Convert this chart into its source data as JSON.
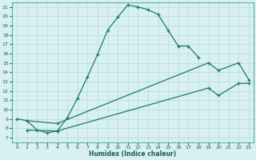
{
  "xlabel": "Humidex (Indice chaleur)",
  "bg_color": "#d8f0f0",
  "grid_color": "#b8d8d8",
  "line_color": "#1a7a6e",
  "xlim": [
    -0.5,
    23.5
  ],
  "ylim": [
    6.5,
    21.5
  ],
  "xticks": [
    0,
    1,
    2,
    3,
    4,
    5,
    6,
    7,
    8,
    9,
    10,
    11,
    12,
    13,
    14,
    15,
    16,
    17,
    18,
    19,
    20,
    21,
    22,
    23
  ],
  "yticks": [
    7,
    8,
    9,
    10,
    11,
    12,
    13,
    14,
    15,
    16,
    17,
    18,
    19,
    20,
    21
  ],
  "series1_x": [
    0,
    1,
    2,
    3,
    4,
    5,
    6,
    7,
    8,
    9,
    10,
    11,
    12,
    13,
    14,
    15,
    16,
    17,
    18
  ],
  "series1_y": [
    9.0,
    8.8,
    7.8,
    7.5,
    7.7,
    9.1,
    11.2,
    13.5,
    15.9,
    18.5,
    19.9,
    21.2,
    21.0,
    20.7,
    20.2,
    18.5,
    16.8,
    16.8,
    15.6
  ],
  "series2_x": [
    1,
    4,
    19,
    20,
    22,
    23
  ],
  "series2_y": [
    8.8,
    8.5,
    15.0,
    14.2,
    15.0,
    13.2
  ],
  "series3_x": [
    1,
    4,
    19,
    20,
    22,
    23
  ],
  "series3_y": [
    7.8,
    7.7,
    12.3,
    11.5,
    12.8,
    12.8
  ]
}
